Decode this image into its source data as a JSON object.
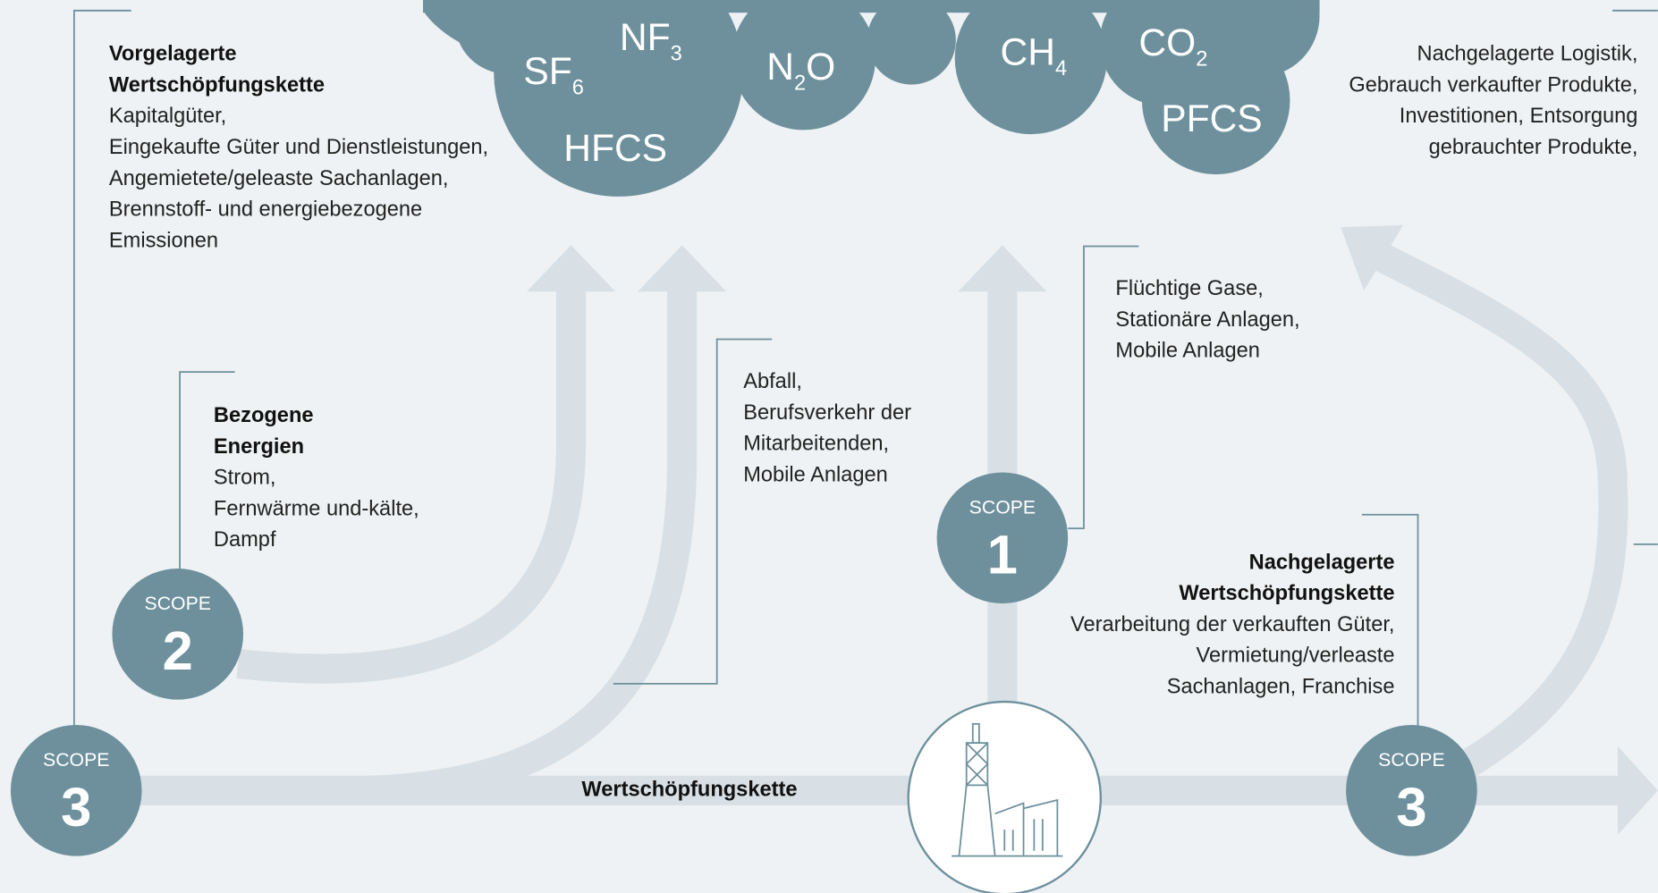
{
  "gases": [
    {
      "text": "SF",
      "sub": "6"
    },
    {
      "text": "NF",
      "sub": "3"
    },
    {
      "text": "N",
      "sub": "2",
      "after": "O"
    },
    {
      "text": "CH",
      "sub": "4"
    },
    {
      "text": "CO",
      "sub": "2"
    },
    {
      "text": "PFCS"
    },
    {
      "text": "HFCS"
    }
  ],
  "scopes": [
    {
      "label": "SCOPE",
      "number": "3"
    },
    {
      "label": "SCOPE",
      "number": "2"
    },
    {
      "label": "SCOPE",
      "number": "1"
    },
    {
      "label": "SCOPE",
      "number": "3"
    }
  ],
  "blocks": [
    {
      "title": [
        "Vorgelagerte",
        "Wertschöpfungskette"
      ],
      "lines": [
        "Kapitalgüter,",
        "Eingekaufte Güter und Dienstleistungen,",
        "Angemietete/geleaste Sachanlagen,",
        "Brennstoff- und energiebezogene",
        "Emissionen"
      ]
    },
    {
      "lines": [
        "Nachgelagerte Logistik,",
        "Gebrauch verkaufter Produkte,",
        "Investitionen, Entsorgung",
        "gebrauchter Produkte,"
      ]
    },
    {
      "title": [
        "Bezogene",
        "Energien"
      ],
      "lines": [
        "Strom,",
        "Fernwärme und-kälte,",
        "Dampf"
      ]
    },
    {
      "lines": [
        "Abfall,",
        "Berufsverkehr der",
        "Mitarbeitenden,",
        "Mobile Anlagen"
      ]
    },
    {
      "lines": [
        "Flüchtige Gase,",
        "Stationäre Anlagen,",
        "Mobile Anlagen"
      ]
    },
    {
      "title": [
        "Nachgelagerte",
        "Wertschöpfungskette"
      ],
      "lines": [
        "Verarbeitung der verkauften Güter,",
        "Vermietung/verleaste",
        "Sachanlagen, Franchise"
      ]
    }
  ],
  "value_chain_label": "Wertschöpfungskette"
}
